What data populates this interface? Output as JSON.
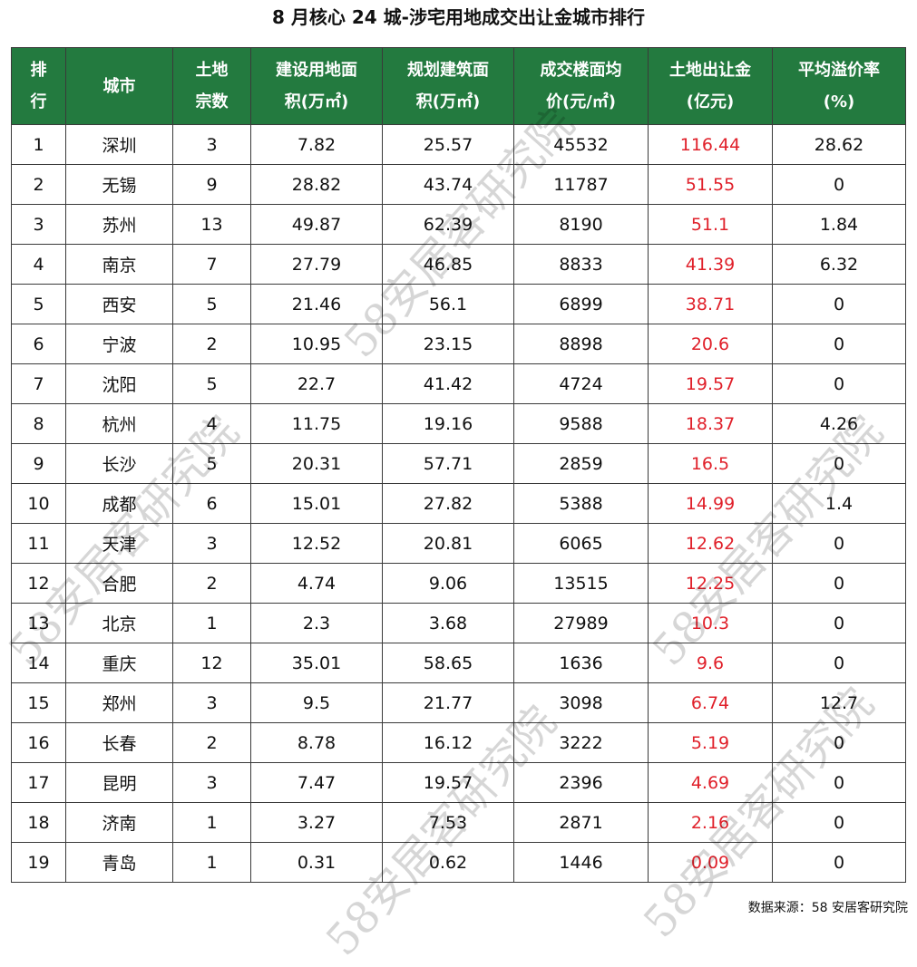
{
  "title": "8 月核心 24 城-涉宅用地成交出让金城市排行",
  "headers": [
    [
      "排",
      "行"
    ],
    [
      "城市"
    ],
    [
      "土地",
      "宗数"
    ],
    [
      "建设用地面",
      "积(万㎡)"
    ],
    [
      "规划建筑面",
      "积(万㎡)"
    ],
    [
      "成交楼面均",
      "价(元/㎡)"
    ],
    [
      "土地出让金",
      "(亿元)"
    ],
    [
      "平均溢价率",
      "(%)"
    ]
  ],
  "rows": [
    [
      "1",
      "深圳",
      "3",
      "7.82",
      "25.57",
      "45532",
      "116.44",
      "28.62"
    ],
    [
      "2",
      "无锡",
      "9",
      "28.82",
      "43.74",
      "11787",
      "51.55",
      "0"
    ],
    [
      "3",
      "苏州",
      "13",
      "49.87",
      "62.39",
      "8190",
      "51.1",
      "1.84"
    ],
    [
      "4",
      "南京",
      "7",
      "27.79",
      "46.85",
      "8833",
      "41.39",
      "6.32"
    ],
    [
      "5",
      "西安",
      "5",
      "21.46",
      "56.1",
      "6899",
      "38.71",
      "0"
    ],
    [
      "6",
      "宁波",
      "2",
      "10.95",
      "23.15",
      "8898",
      "20.6",
      "0"
    ],
    [
      "7",
      "沈阳",
      "5",
      "22.7",
      "41.42",
      "4724",
      "19.57",
      "0"
    ],
    [
      "8",
      "杭州",
      "4",
      "11.75",
      "19.16",
      "9588",
      "18.37",
      "4.26"
    ],
    [
      "9",
      "长沙",
      "5",
      "20.31",
      "57.71",
      "2859",
      "16.5",
      "0"
    ],
    [
      "10",
      "成都",
      "6",
      "15.01",
      "27.82",
      "5388",
      "14.99",
      "1.4"
    ],
    [
      "11",
      "天津",
      "3",
      "12.52",
      "20.81",
      "6065",
      "12.62",
      "0"
    ],
    [
      "12",
      "合肥",
      "2",
      "4.74",
      "9.06",
      "13515",
      "12.25",
      "0"
    ],
    [
      "13",
      "北京",
      "1",
      "2.3",
      "3.68",
      "27989",
      "10.3",
      "0"
    ],
    [
      "14",
      "重庆",
      "12",
      "35.01",
      "58.65",
      "1636",
      "9.6",
      "0"
    ],
    [
      "15",
      "郑州",
      "3",
      "9.5",
      "21.77",
      "3098",
      "6.74",
      "12.7"
    ],
    [
      "16",
      "长春",
      "2",
      "8.78",
      "16.12",
      "3222",
      "5.19",
      "0"
    ],
    [
      "17",
      "昆明",
      "3",
      "7.47",
      "19.57",
      "2396",
      "4.69",
      "0"
    ],
    [
      "18",
      "济南",
      "1",
      "3.27",
      "7.53",
      "2871",
      "2.16",
      "0"
    ],
    [
      "19",
      "青岛",
      "1",
      "0.31",
      "0.62",
      "1446",
      "0.09",
      "0"
    ]
  ],
  "source": "数据来源：58 安居客研究院",
  "watermark": "58安居客研究院",
  "colors": {
    "header_bg": "#237a3f",
    "header_text": "#ffffff",
    "highlight_text": "#e0202a"
  }
}
